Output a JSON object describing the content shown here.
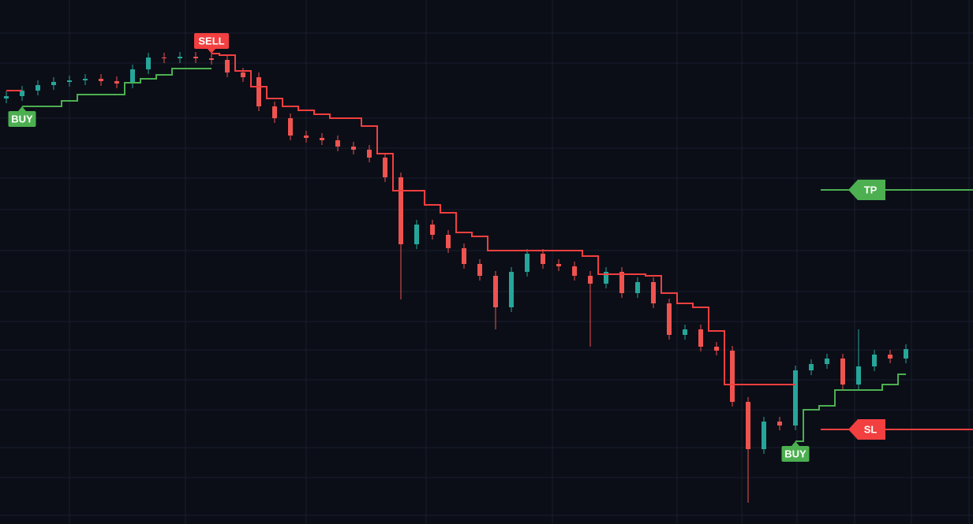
{
  "chart_data": {
    "type": "candlestick",
    "ylim": [
      0,
      665
    ],
    "up_color": "#26a69a",
    "down_color": "#ef5350",
    "open": [
      540,
      543,
      550,
      557,
      561,
      563,
      565,
      562,
      559,
      577,
      592,
      591,
      593,
      591,
      589,
      573,
      567,
      530,
      515,
      493,
      490,
      487,
      479,
      475,
      465,
      440,
      355,
      380,
      367,
      350,
      330,
      315,
      275,
      320,
      343,
      330,
      327,
      315,
      305,
      320,
      293,
      307,
      280,
      240,
      247,
      225,
      220,
      155,
      95,
      130,
      125,
      195,
      203,
      210,
      177,
      200,
      215,
      210
    ],
    "high": [
      549,
      556,
      563,
      567,
      569,
      571,
      571,
      568,
      583,
      598,
      598,
      599,
      599,
      597,
      595,
      579,
      573,
      536,
      521,
      499,
      496,
      493,
      485,
      481,
      471,
      446,
      386,
      386,
      373,
      356,
      336,
      321,
      326,
      349,
      349,
      336,
      333,
      321,
      326,
      326,
      313,
      313,
      286,
      253,
      253,
      231,
      226,
      161,
      136,
      136,
      201,
      209,
      216,
      216,
      247,
      221,
      221,
      228
    ],
    "low": [
      534,
      537,
      544,
      551,
      555,
      557,
      556,
      553,
      553,
      571,
      585,
      585,
      585,
      583,
      567,
      561,
      524,
      509,
      487,
      484,
      481,
      473,
      469,
      459,
      434,
      285,
      349,
      361,
      344,
      324,
      309,
      247,
      269,
      314,
      324,
      321,
      309,
      225,
      299,
      287,
      287,
      274,
      234,
      234,
      219,
      214,
      149,
      27,
      89,
      119,
      119,
      189,
      197,
      171,
      171,
      194,
      204,
      204
    ],
    "close": [
      543,
      550,
      557,
      561,
      563,
      565,
      562,
      559,
      577,
      592,
      591,
      593,
      591,
      589,
      573,
      567,
      530,
      515,
      493,
      490,
      487,
      479,
      475,
      465,
      440,
      355,
      380,
      367,
      350,
      330,
      315,
      275,
      320,
      343,
      330,
      327,
      315,
      305,
      320,
      293,
      307,
      280,
      240,
      247,
      225,
      220,
      155,
      95,
      130,
      125,
      195,
      203,
      210,
      177,
      200,
      215,
      210,
      222
    ],
    "series": [
      {
        "color": "#f23f3f",
        "values": [
          550,
          550,
          null,
          null,
          null,
          null,
          null,
          null,
          null,
          null,
          null,
          null,
          null,
          597,
          595,
          575,
          555,
          540,
          530,
          525,
          520,
          515,
          515,
          505,
          470,
          423,
          423,
          405,
          395,
          370,
          365,
          347,
          347,
          347,
          347,
          347,
          347,
          340,
          317,
          317,
          317,
          315,
          293,
          280,
          275,
          245,
          177,
          177,
          177,
          177,
          177,
          null,
          null,
          null,
          null,
          null,
          null,
          null
        ]
      },
      {
        "color": "#4caf50",
        "values": [
          null,
          530,
          530,
          530,
          537,
          545,
          545,
          545,
          560,
          565,
          570,
          578,
          578,
          578,
          null,
          null,
          null,
          null,
          null,
          null,
          null,
          null,
          null,
          null,
          null,
          null,
          null,
          null,
          null,
          null,
          null,
          null,
          null,
          null,
          null,
          null,
          null,
          null,
          null,
          null,
          null,
          null,
          null,
          null,
          null,
          null,
          null,
          null,
          null,
          null,
          105,
          145,
          150,
          170,
          170,
          170,
          177,
          190
        ]
      }
    ],
    "signals": [
      {
        "text": "BUY",
        "index": 1,
        "value": 530,
        "color": "#4caf50"
      },
      {
        "text": "SELL",
        "index": 13,
        "value": 597,
        "color": "#f23f3f"
      },
      {
        "text": "BUY",
        "index": 50,
        "value": 105,
        "color": "#4caf50"
      }
    ],
    "levels": [
      {
        "text": "TP",
        "value": 424,
        "color": "#4caf50"
      },
      {
        "text": "SL",
        "value": 120,
        "color": "#f23f3f"
      }
    ]
  }
}
